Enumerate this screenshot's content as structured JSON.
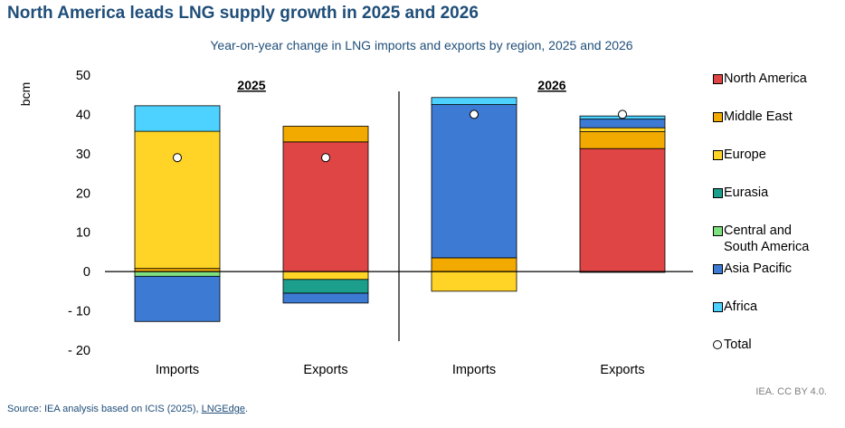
{
  "title": "North America leads LNG supply growth in 2025 and 2026",
  "subtitle": "Year-on-year change in LNG imports and exports by region, 2025 and 2026",
  "credit": "IEA. CC BY 4.0.",
  "source": {
    "prefix": "Source: IEA analysis based on ICIS (2025), ",
    "link": "LNGEdge",
    "suffix": "."
  },
  "colors": {
    "North America": "#e04545",
    "Middle East": "#f2a900",
    "Europe": "#ffd426",
    "Eurasia": "#1b9e8c",
    "Central and South America": "#7ee07e",
    "Asia Pacific": "#3c7ad4",
    "Africa": "#4dd2ff"
  },
  "chart_data": {
    "type": "bar",
    "stacked": true,
    "title": "Year-on-year change in LNG imports and exports by region, 2025 and 2026",
    "xlabel": "",
    "ylabel": "bcm",
    "ylim": [
      -20,
      50
    ],
    "yticks": [
      50,
      40,
      30,
      20,
      10,
      0,
      -10,
      -20
    ],
    "ytick_labels": [
      "50",
      "40",
      "30",
      "20",
      "10",
      "0",
      "- 10",
      "- 20"
    ],
    "categories": [
      "Imports",
      "Exports",
      "Imports",
      "Exports"
    ],
    "groups": [
      {
        "label": "2025",
        "categories": [
          0,
          1
        ]
      },
      {
        "label": "2026",
        "categories": [
          2,
          3
        ]
      }
    ],
    "series": [
      {
        "name": "North America",
        "values": [
          0.0,
          33.0,
          0.0,
          31.3
        ]
      },
      {
        "name": "Middle East",
        "values": [
          0.8,
          4.0,
          3.5,
          4.3
        ]
      },
      {
        "name": "Europe",
        "values": [
          34.9,
          -2.0,
          -5.0,
          1.0
        ]
      },
      {
        "name": "Eurasia",
        "values": [
          0.0,
          -3.5,
          0.0,
          -0.2
        ]
      },
      {
        "name": "Central and South America",
        "values": [
          -1.2,
          0.0,
          0.0,
          0.0
        ]
      },
      {
        "name": "Asia Pacific",
        "values": [
          -11.5,
          -2.5,
          39.0,
          2.2
        ]
      },
      {
        "name": "Africa",
        "values": [
          6.5,
          0.0,
          1.8,
          0.8
        ]
      }
    ],
    "totals": [
      29,
      29,
      40,
      40
    ],
    "total_label": "Total",
    "legend_order": [
      "North America",
      "Middle East",
      "Europe",
      "Eurasia",
      "Central and South America",
      "Asia Pacific",
      "Africa",
      "Total"
    ],
    "legend_labels": [
      "North America",
      "Middle East",
      "Europe",
      "Eurasia",
      "Central and\nSouth America",
      "Asia Pacific",
      "Africa",
      "Total"
    ],
    "legend_position": "right"
  }
}
